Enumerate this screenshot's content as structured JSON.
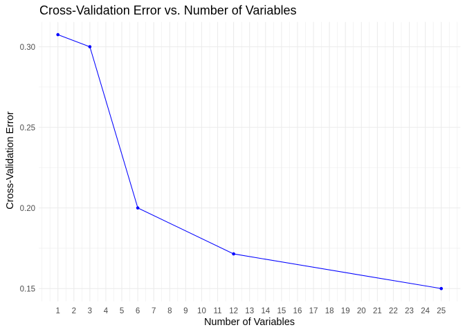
{
  "page": {
    "background": "#FFFFFF"
  },
  "chart_data": {
    "type": "line",
    "title": "Cross-Validation Error vs. Number of Variables",
    "xlabel": "Number of Variables",
    "ylabel": "Cross-Validation Error",
    "series": [
      {
        "name": "cv-error",
        "x": [
          1,
          3,
          6,
          12,
          25
        ],
        "y": [
          0.3075,
          0.3,
          0.2,
          0.1715,
          0.15
        ]
      }
    ],
    "x_ticks": [
      1,
      2,
      3,
      4,
      5,
      6,
      7,
      8,
      9,
      10,
      11,
      12,
      13,
      14,
      15,
      16,
      17,
      18,
      19,
      20,
      21,
      22,
      23,
      24,
      25
    ],
    "x_tick_labels": [
      "1",
      "2",
      "3",
      "4",
      "5",
      "6",
      "7",
      "8",
      "9",
      "10",
      "11",
      "12",
      "13",
      "14",
      "15",
      "16",
      "17",
      "18",
      "19",
      "20",
      "21",
      "22",
      "23",
      "24",
      "25"
    ],
    "y_ticks": [
      0.15,
      0.2,
      0.25,
      0.3
    ],
    "y_tick_labels": [
      "0.15",
      "0.20",
      "0.25",
      "0.30"
    ],
    "xlim": [
      -0.2,
      26.2
    ],
    "ylim": [
      0.1421,
      0.3154
    ],
    "grid": "major+minor",
    "legend": "none",
    "colors": {
      "line": "#0000FF",
      "point": "#0000FF",
      "grid": "#EBEBEB",
      "axis_text": "#4D4D4D",
      "title_text": "#000000"
    }
  }
}
